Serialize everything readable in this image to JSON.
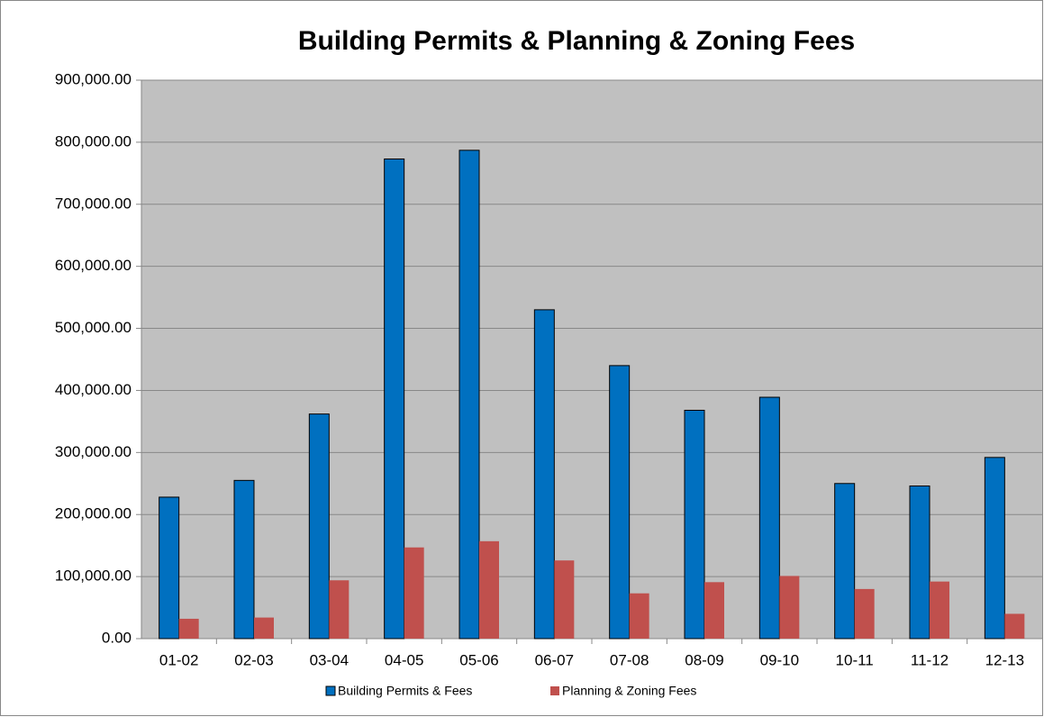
{
  "chart_data": {
    "type": "bar",
    "title": "Building Permits & Planning & Zoning Fees",
    "categories": [
      "01-02",
      "02-03",
      "03-04",
      "04-05",
      "05-06",
      "06-07",
      "07-08",
      "08-09",
      "09-10",
      "10-11",
      "11-12",
      "12-13"
    ],
    "series": [
      {
        "name": "Building Permits & Fees",
        "color": "#0070c0",
        "values": [
          228000,
          255000,
          362000,
          773000,
          787000,
          530000,
          440000,
          368000,
          389000,
          250000,
          246000,
          292000
        ]
      },
      {
        "name": "Planning & Zoning Fees",
        "color": "#c0504d",
        "values": [
          32000,
          34000,
          94000,
          147000,
          157000,
          126000,
          73000,
          91000,
          101000,
          80000,
          92000,
          40000
        ]
      }
    ],
    "ylim": [
      0,
      900000
    ],
    "yticks": [
      {
        "value": 0,
        "label": "0.00"
      },
      {
        "value": 100000,
        "label": "100,000.00"
      },
      {
        "value": 200000,
        "label": "200,000.00"
      },
      {
        "value": 300000,
        "label": "300,000.00"
      },
      {
        "value": 400000,
        "label": "400,000.00"
      },
      {
        "value": 500000,
        "label": "500,000.00"
      },
      {
        "value": 600000,
        "label": "600,000.00"
      },
      {
        "value": 700000,
        "label": "700,000.00"
      },
      {
        "value": 800000,
        "label": "800,000.00"
      },
      {
        "value": 900000,
        "label": "900,000.00"
      }
    ],
    "grid": true,
    "legend": "bottom"
  }
}
